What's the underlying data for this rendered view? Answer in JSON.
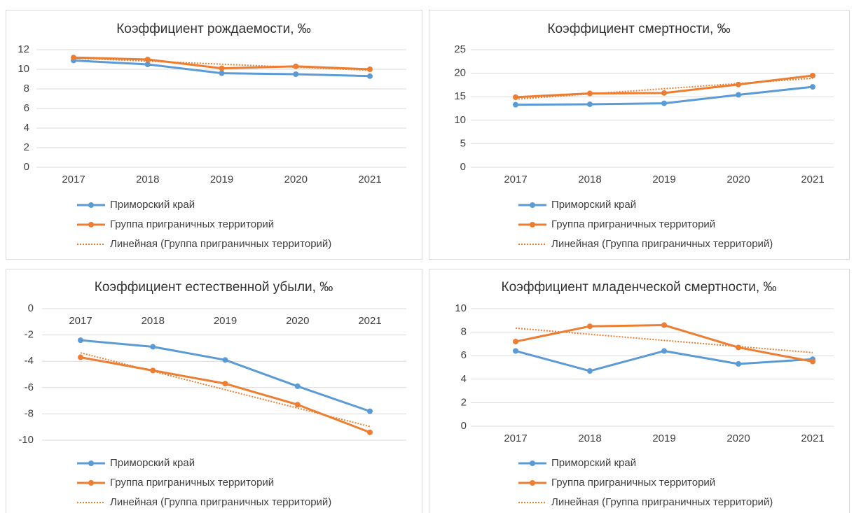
{
  "chart_data": [
    {
      "type": "line",
      "title": "Коэффициент рождаемости, ‰",
      "categories": [
        "2017",
        "2018",
        "2019",
        "2020",
        "2021"
      ],
      "series": [
        {
          "name": "Приморский край",
          "color": "#5b9bd5",
          "values": [
            10.9,
            10.5,
            9.6,
            9.5,
            9.3
          ]
        },
        {
          "name": "Группа приграничных территорий",
          "color": "#ed7d31",
          "values": [
            11.2,
            11.0,
            10.1,
            10.3,
            10.0
          ]
        },
        {
          "name": "Линейная (Группа приграничных территорий)",
          "color": "#ed7d31",
          "dashed": true,
          "values": [
            11.14,
            10.83,
            10.52,
            10.21,
            9.9
          ]
        }
      ],
      "ylim": [
        0,
        12
      ],
      "yticks": [
        0,
        2,
        4,
        6,
        8,
        10,
        12
      ],
      "grid": true,
      "legend": "bottom"
    },
    {
      "type": "line",
      "title": "Коэффициент смертности, ‰",
      "categories": [
        "2017",
        "2018",
        "2019",
        "2020",
        "2021"
      ],
      "series": [
        {
          "name": "Приморский край",
          "color": "#5b9bd5",
          "values": [
            13.3,
            13.4,
            13.6,
            15.4,
            17.1
          ]
        },
        {
          "name": "Группа приграничных территорий",
          "color": "#ed7d31",
          "values": [
            14.9,
            15.7,
            15.8,
            17.6,
            19.5
          ]
        },
        {
          "name": "Линейная (Группа приграничных территорий)",
          "color": "#ed7d31",
          "dashed": true,
          "values": [
            14.48,
            15.59,
            16.7,
            17.81,
            18.92
          ]
        }
      ],
      "ylim": [
        0,
        25
      ],
      "yticks": [
        0,
        5,
        10,
        15,
        20,
        25
      ],
      "grid": true,
      "legend": "bottom"
    },
    {
      "type": "line",
      "title": "Коэффициент естественной убыли, ‰",
      "categories": [
        "2017",
        "2018",
        "2019",
        "2020",
        "2021"
      ],
      "series": [
        {
          "name": "Приморский край",
          "color": "#5b9bd5",
          "values": [
            -2.4,
            -2.9,
            -3.9,
            -5.9,
            -7.8
          ]
        },
        {
          "name": "Группа приграничных территорий",
          "color": "#ed7d31",
          "values": [
            -3.7,
            -4.7,
            -5.7,
            -7.3,
            -9.4
          ]
        },
        {
          "name": "Линейная (Группа приграничных территорий)",
          "color": "#ed7d31",
          "dashed": true,
          "values": [
            -3.36,
            -4.76,
            -6.16,
            -7.56,
            -8.96
          ]
        }
      ],
      "ylim": [
        -10,
        0
      ],
      "yticks": [
        -10,
        -8,
        -6,
        -4,
        -2,
        0
      ],
      "grid": true,
      "legend": "bottom"
    },
    {
      "type": "line",
      "title": "Коэффициент младенческой смертности, ‰",
      "categories": [
        "2017",
        "2018",
        "2019",
        "2020",
        "2021"
      ],
      "series": [
        {
          "name": "Приморский край",
          "color": "#5b9bd5",
          "values": [
            6.4,
            4.7,
            6.4,
            5.3,
            5.7
          ]
        },
        {
          "name": "Группа приграничных территорий",
          "color": "#ed7d31",
          "values": [
            7.2,
            8.5,
            8.6,
            6.7,
            5.5
          ]
        },
        {
          "name": "Линейная (Группа приграничных территорий)",
          "color": "#ed7d31",
          "dashed": true,
          "values": [
            8.34,
            7.82,
            7.3,
            6.78,
            6.26
          ]
        }
      ],
      "ylim": [
        0,
        10
      ],
      "yticks": [
        0,
        2,
        4,
        6,
        8,
        10
      ],
      "grid": true,
      "legend": "bottom"
    }
  ]
}
